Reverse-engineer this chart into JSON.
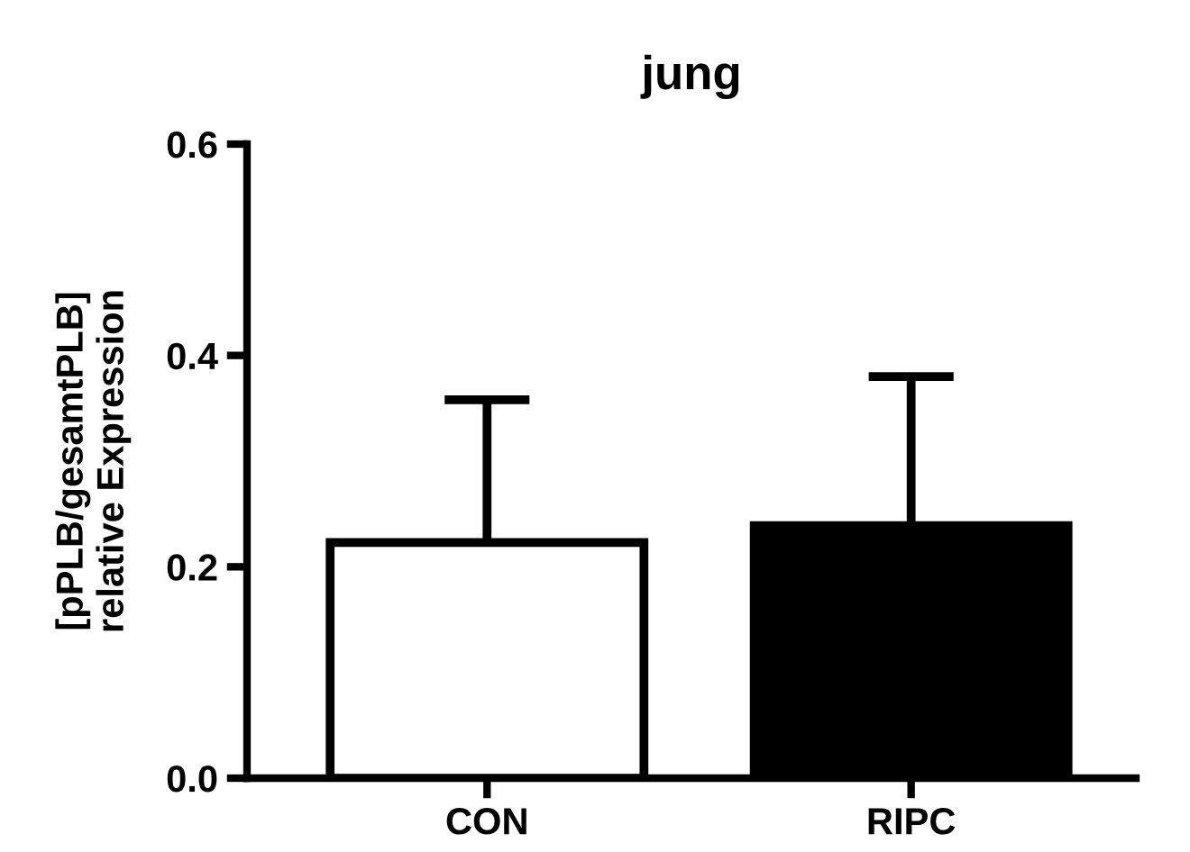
{
  "chart_data": {
    "type": "bar",
    "title": "jung",
    "ylabel": "[pPLB/gesamtPLB]\nrelative Expression",
    "categories": [
      "CON",
      "RIPC"
    ],
    "values": [
      0.223,
      0.239
    ],
    "colors": [
      "#ffffff",
      "#000000"
    ],
    "errors": [
      [
        0.223,
        0.358
      ],
      [
        0.239,
        0.38
      ]
    ],
    "ylim": [
      0,
      0.6
    ],
    "yticks": [
      {
        "value": 0,
        "label": "0.0"
      },
      0.2,
      0.4,
      0.6
    ],
    "grid": false
  }
}
